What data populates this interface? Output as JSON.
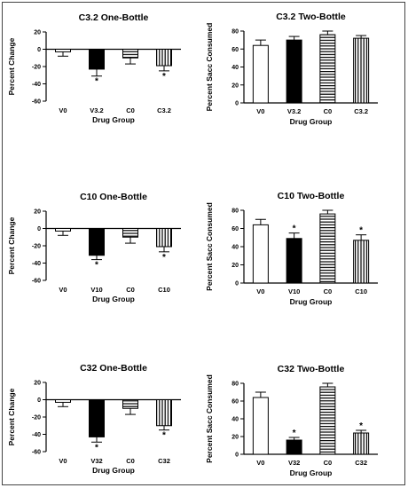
{
  "chart_data": [
    {
      "type": "bar",
      "title": "C3.2 One-Bottle",
      "xlabel": "Drug Group",
      "ylabel": "Percent Change",
      "categories": [
        "V0",
        "V3.2",
        "C0",
        "C3.2"
      ],
      "values": [
        -3,
        -23,
        -10,
        -19
      ],
      "errors": [
        5,
        8,
        7,
        6
      ],
      "significant": [
        false,
        true,
        false,
        true
      ],
      "ylim": [
        -60,
        20
      ],
      "yticks": [
        20,
        0,
        -20,
        -40,
        -60
      ],
      "fills": [
        "white",
        "solid",
        "hstripe",
        "vstripe"
      ]
    },
    {
      "type": "bar",
      "title": "C3.2 Two-Bottle",
      "xlabel": "Drug Group",
      "ylabel": "Percent Sacc Consumed",
      "categories": [
        "V0",
        "V3.2",
        "C0",
        "C3.2"
      ],
      "values": [
        64,
        70,
        76,
        72
      ],
      "errors": [
        6,
        4,
        4,
        3
      ],
      "significant": [
        false,
        false,
        false,
        false
      ],
      "ylim": [
        0,
        80
      ],
      "yticks": [
        0,
        20,
        40,
        60,
        80
      ],
      "fills": [
        "white",
        "solid",
        "hstripe",
        "vstripe"
      ]
    },
    {
      "type": "bar",
      "title": "C10 One-Bottle",
      "xlabel": "Drug Group",
      "ylabel": "Percent Change",
      "categories": [
        "V0",
        "V10",
        "C0",
        "C10"
      ],
      "values": [
        -3,
        -31,
        -10,
        -21
      ],
      "errors": [
        5,
        5,
        7,
        6
      ],
      "significant": [
        false,
        true,
        false,
        true
      ],
      "ylim": [
        -60,
        20
      ],
      "yticks": [
        20,
        0,
        -20,
        -40,
        -60
      ],
      "fills": [
        "white",
        "solid",
        "hstripe",
        "vstripe"
      ]
    },
    {
      "type": "bar",
      "title": "C10 Two-Bottle",
      "xlabel": "Drug Group",
      "ylabel": "Percent Sacc Consumed",
      "categories": [
        "V0",
        "V10",
        "C0",
        "C10"
      ],
      "values": [
        64,
        49,
        76,
        47
      ],
      "errors": [
        6,
        6,
        4,
        6
      ],
      "significant": [
        false,
        true,
        false,
        true
      ],
      "ylim": [
        0,
        80
      ],
      "yticks": [
        0,
        20,
        40,
        60,
        80
      ],
      "fills": [
        "white",
        "solid",
        "hstripe",
        "vstripe"
      ]
    },
    {
      "type": "bar",
      "title": "C32 One-Bottle",
      "xlabel": "Drug Group",
      "ylabel": "Percent Change",
      "categories": [
        "V0",
        "V32",
        "C0",
        "C32"
      ],
      "values": [
        -3,
        -43,
        -10,
        -30
      ],
      "errors": [
        5,
        6,
        7,
        5
      ],
      "significant": [
        false,
        true,
        false,
        true
      ],
      "ylim": [
        -60,
        20
      ],
      "yticks": [
        20,
        0,
        -20,
        -40,
        -60
      ],
      "fills": [
        "white",
        "solid",
        "hstripe",
        "vstripe"
      ]
    },
    {
      "type": "bar",
      "title": "C32 Two-Bottle",
      "xlabel": "Drug Group",
      "ylabel": "Percent Sacc Consumed",
      "categories": [
        "V0",
        "V32",
        "C0",
        "C32"
      ],
      "values": [
        64,
        16,
        76,
        24
      ],
      "errors": [
        6,
        3,
        4,
        3
      ],
      "significant": [
        false,
        true,
        false,
        true
      ],
      "ylim": [
        0,
        80
      ],
      "yticks": [
        0,
        20,
        40,
        60,
        80
      ],
      "fills": [
        "white",
        "solid",
        "hstripe",
        "vstripe"
      ]
    }
  ],
  "significance_marker": "*",
  "colors": {
    "ink": "#000000",
    "background": "#ffffff"
  }
}
